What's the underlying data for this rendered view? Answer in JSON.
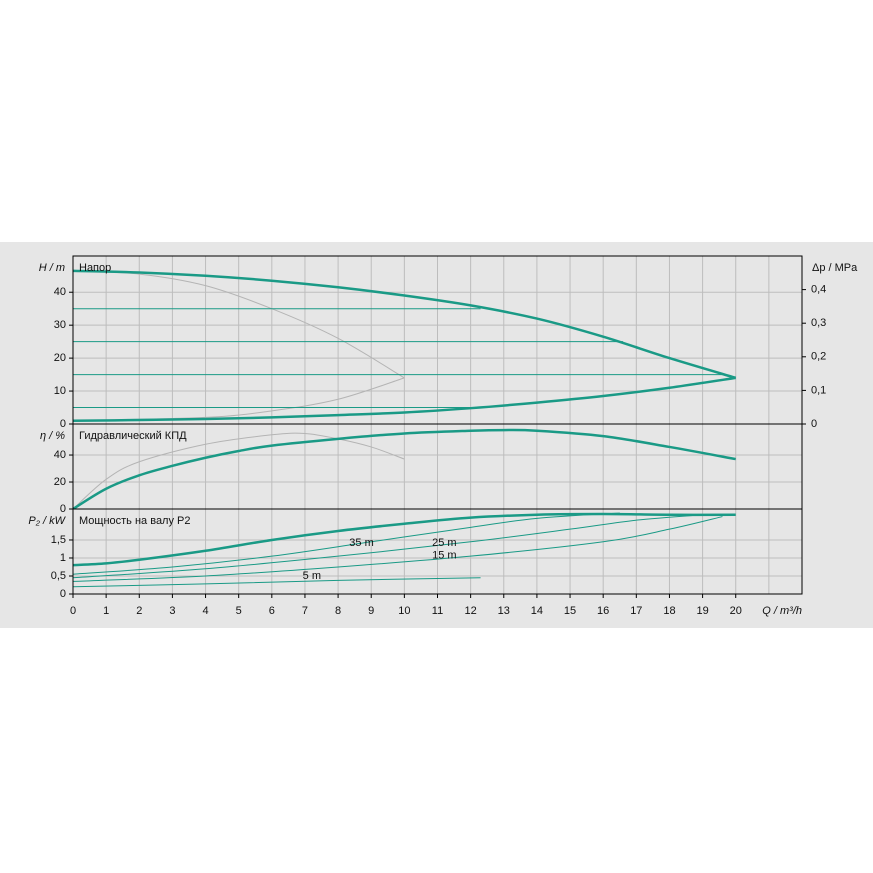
{
  "chart_data": [
    {
      "type": "line",
      "ylabel": "H / m",
      "y2label": "Δp / MPa",
      "title": "Напор",
      "ylim": [
        0,
        51
      ],
      "yticks": [
        0,
        10,
        20,
        30,
        40
      ],
      "y2lim": [
        0,
        0.5
      ],
      "y2ticks": [
        0,
        {
          "value": 0.1,
          "label": "0,1"
        },
        {
          "value": 0.2,
          "label": "0,2"
        },
        {
          "value": 0.3,
          "label": "0,3"
        },
        {
          "value": 0.4,
          "label": "0,4"
        }
      ],
      "grid": true,
      "series": [
        {
          "color": "#b4b4b4",
          "x": [
            0,
            2,
            4,
            6,
            8,
            10
          ],
          "values": [
            46.5,
            45.5,
            42,
            35,
            26,
            14
          ]
        },
        {
          "color": "#b4b4b4",
          "x": [
            0,
            4,
            6,
            8,
            10
          ],
          "values": [
            1,
            2,
            4,
            7.5,
            14
          ]
        },
        {
          "color": "#1a9a86",
          "x": [
            0,
            12.3
          ],
          "values": [
            35,
            35
          ]
        },
        {
          "color": "#1a9a86",
          "x": [
            0,
            16.6
          ],
          "values": [
            25,
            25
          ]
        },
        {
          "color": "#1a9a86",
          "x": [
            0,
            19.7
          ],
          "values": [
            15,
            15
          ]
        },
        {
          "color": "#1a9a86",
          "x": [
            0,
            12.2
          ],
          "values": [
            5,
            5
          ]
        },
        {
          "color": "#1a9a86",
          "width": 2.5,
          "x": [
            0,
            2,
            4,
            6,
            8,
            10,
            12,
            14,
            16,
            18,
            20
          ],
          "values": [
            46.5,
            46,
            45,
            43.5,
            41.5,
            39,
            36,
            32,
            26.5,
            20,
            14
          ]
        },
        {
          "color": "#1a9a86",
          "width": 2.5,
          "x": [
            0,
            2,
            4,
            6,
            8,
            10,
            12,
            14,
            16,
            18,
            20
          ],
          "values": [
            1,
            1.2,
            1.5,
            2,
            2.7,
            3.5,
            4.8,
            6.5,
            8.5,
            11,
            14
          ]
        }
      ]
    },
    {
      "type": "line",
      "ylabel": "η / %",
      "title": "Гидравлический КПД",
      "ylim": [
        0,
        63
      ],
      "yticks": [
        0,
        20,
        40
      ],
      "grid": true,
      "series": [
        {
          "color": "#b4b4b4",
          "x": [
            0,
            1,
            2,
            4,
            6,
            7,
            8,
            9,
            10
          ],
          "values": [
            0,
            22,
            35,
            48,
            55,
            56,
            52,
            46,
            37
          ]
        },
        {
          "color": "#1a9a86",
          "width": 2.5,
          "x": [
            0,
            1,
            2,
            3,
            4,
            5,
            6,
            8,
            10,
            12,
            13,
            14,
            16,
            18,
            20
          ],
          "values": [
            0,
            15,
            25,
            32,
            38,
            43,
            47,
            52,
            56,
            58,
            58.5,
            58,
            54,
            46,
            37
          ]
        }
      ]
    },
    {
      "type": "line",
      "ylabel": "P₂ / kW",
      "title": "Мощность на валу P2",
      "xlabel": "Q / m³/h",
      "xlim": [
        0,
        22
      ],
      "xticks": [
        0,
        1,
        2,
        3,
        4,
        5,
        6,
        7,
        8,
        9,
        10,
        11,
        12,
        13,
        14,
        15,
        16,
        17,
        18,
        19,
        20
      ],
      "ylim": [
        0,
        2.36
      ],
      "yticks": [
        0,
        {
          "value": 0.5,
          "label": "0,5"
        },
        1,
        {
          "value": 1.5,
          "label": "1,5"
        }
      ],
      "grid": true,
      "series": [
        {
          "name": "35 m",
          "color": "#1a9a86",
          "x": [
            0,
            3,
            6,
            9,
            12,
            14,
            16.5
          ],
          "values": [
            0.55,
            0.75,
            1.05,
            1.45,
            1.85,
            2.1,
            2.25
          ]
        },
        {
          "name": "25 m",
          "color": "#1a9a86",
          "x": [
            0,
            4,
            8,
            12,
            15,
            17,
            19
          ],
          "values": [
            0.45,
            0.7,
            1.05,
            1.45,
            1.8,
            2.05,
            2.2
          ]
        },
        {
          "name": "15 m",
          "color": "#1a9a86",
          "x": [
            0,
            4,
            8,
            12,
            16,
            18,
            19.6
          ],
          "values": [
            0.35,
            0.5,
            0.75,
            1.05,
            1.45,
            1.8,
            2.15
          ]
        },
        {
          "name": "5 m",
          "color": "#1a9a86",
          "x": [
            0,
            4,
            8,
            12.3
          ],
          "values": [
            0.2,
            0.28,
            0.38,
            0.45
          ]
        },
        {
          "color": "#1a9a86",
          "width": 2.5,
          "x": [
            0,
            1,
            2,
            4,
            6,
            8,
            10,
            12,
            14,
            16,
            18,
            20
          ],
          "values": [
            0.8,
            0.85,
            0.95,
            1.2,
            1.5,
            1.75,
            1.95,
            2.12,
            2.2,
            2.22,
            2.2,
            2.2
          ]
        }
      ]
    }
  ]
}
